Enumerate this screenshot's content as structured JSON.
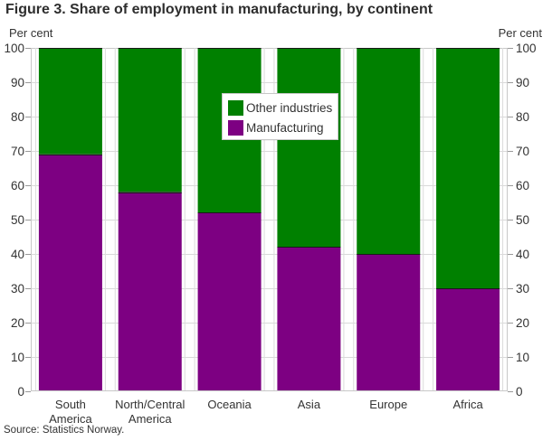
{
  "chart_data": {
    "type": "bar",
    "stacked": true,
    "title": "Figure 3. Share of employment in manufacturing, by continent",
    "categories": [
      "South America",
      "North/Central America",
      "Oceania",
      "Asia",
      "Europe",
      "Africa"
    ],
    "category_label_lines": [
      [
        "South",
        "America"
      ],
      [
        "North/Central",
        "America"
      ],
      [
        "Oceania"
      ],
      [
        "Asia"
      ],
      [
        "Europe"
      ],
      [
        "Africa"
      ]
    ],
    "series": [
      {
        "name": "Manufacturing",
        "color": "#7d0082",
        "values": [
          69,
          58,
          52,
          42,
          40,
          30
        ]
      },
      {
        "name": "Other industries",
        "color": "#008000",
        "values": [
          31,
          42,
          48,
          58,
          60,
          70
        ]
      }
    ],
    "stack_order_bottom_to_top": [
      "Manufacturing",
      "Other industries"
    ],
    "yaxis": {
      "label_left": "Per cent",
      "label_right": "Per cent",
      "min": 0,
      "max": 100,
      "tick_step": 10,
      "grid": true
    },
    "legend": {
      "position": "inside-top-center",
      "entries": [
        "Other industries",
        "Manufacturing"
      ]
    }
  },
  "source": "Source: Statistics Norway.",
  "colors": {
    "grid": "#d9d9d9",
    "frame": "#c8c8c8",
    "tick": "#999999",
    "text": "#333333",
    "title_text": "#2e2e2e",
    "segment_border": "#1a1a1a",
    "gap_line": "#dcdcdc",
    "legend_border": "#c8c8c8",
    "background": "#ffffff"
  }
}
